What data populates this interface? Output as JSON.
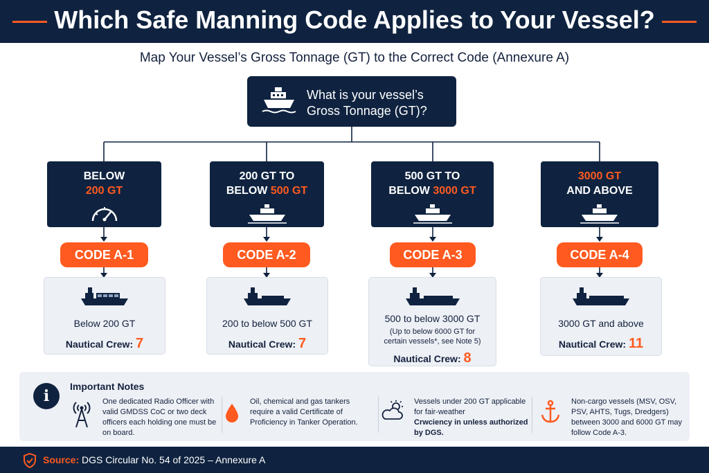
{
  "header": {
    "title": "Which Safe Manning Code Applies to Your Vessel?"
  },
  "subtitle": "Map Your Vessel’s Gross Tonnage (GT) to the Correct Code (Annexure A)",
  "question": {
    "line1": "What is your vessel’s",
    "line2": "Gross Tonnage (GT)?"
  },
  "categories": [
    {
      "line1_a": "BELOW",
      "line1_b": "",
      "line2_a": "",
      "line2_b": "200 GT",
      "icon": "speedometer-icon",
      "code": "CODE A-1",
      "range": "Below 200 GT",
      "note": "",
      "crew_label": "Nautical Crew:",
      "crew": "7"
    },
    {
      "line1_a": "200 GT TO",
      "line1_b": "",
      "line2_a": "BELOW ",
      "line2_b": "500 GT",
      "icon": "ship-icon",
      "code": "CODE A-2",
      "range": "200 to below 500 GT",
      "note": "",
      "crew_label": "Nautical Crew:",
      "crew": "7"
    },
    {
      "line1_a": "500 GT TO",
      "line1_b": "",
      "line2_a": "BELOW ",
      "line2_b": "3000 GT",
      "icon": "ship-icon",
      "code": "CODE A-3",
      "range": "500 to below 3000 GT",
      "note": "(Up to below 6000 GT for certain vessels*, see Note 5)",
      "crew_label": "Nautical Crew:",
      "crew": "8"
    },
    {
      "line1_a": "",
      "line1_b": "3000 GT",
      "line2_a": "AND ABOVE",
      "line2_b": "",
      "icon": "ship-icon",
      "code": "CODE A-4",
      "range": "3000 GT and above",
      "note": "",
      "crew_label": "Nautical Crew:",
      "crew": "11"
    }
  ],
  "notes": {
    "title": "Important Notes",
    "items": [
      {
        "icon": "radio-tower-icon",
        "text": "One dedicated Radio Officer with valid GMDSS CoC or two deck officers each holding one must be on board."
      },
      {
        "icon": "oil-drop-icon",
        "text": "Oil, chemical and gas tankers require a valid Certificate of Proficiency in Tanker Operation."
      },
      {
        "icon": "weather-icon",
        "text_a": "Vessels under 200 GT applicable for fair-weather",
        "text_b": "Crwciency in unless authorized by DGS."
      },
      {
        "icon": "anchor-icon",
        "text": "Non-cargo vessels (MSV, OSV, PSV, AHTS, Tugs, Dredgers) between 3000 and 6000 GT may follow Code A-3."
      }
    ]
  },
  "footer": {
    "label": "Source:",
    "text": " DGS Circular No. 54 of 2025 – Annexure A"
  },
  "colors": {
    "navy": "#0f2340",
    "accent": "#ff5a1f",
    "card": "#edf0f5"
  }
}
